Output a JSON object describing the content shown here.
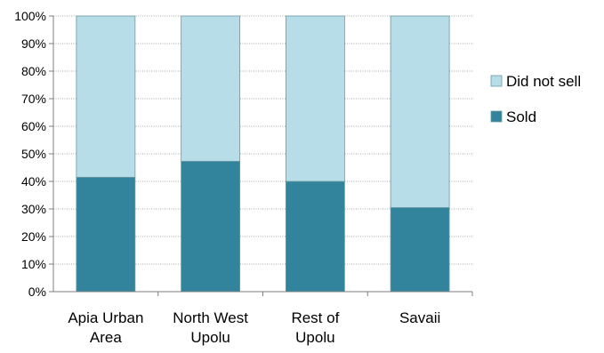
{
  "chart_data": {
    "type": "bar",
    "stacked": true,
    "percent_stacked": true,
    "categories": [
      [
        "Apia Urban",
        "Area"
      ],
      [
        "North West",
        "Upolu"
      ],
      [
        "Rest of",
        "Upolu"
      ],
      [
        "Savaii"
      ]
    ],
    "series": [
      {
        "name": "Sold",
        "values": [
          41.5,
          47.3,
          40.0,
          30.5
        ],
        "color": "#31849b"
      },
      {
        "name": "Did not sell",
        "values": [
          58.5,
          52.7,
          60.0,
          69.5
        ],
        "color": "#b7dee8"
      }
    ],
    "y_ticks": [
      "0%",
      "10%",
      "20%",
      "30%",
      "40%",
      "50%",
      "60%",
      "70%",
      "80%",
      "90%",
      "100%"
    ],
    "ylim": [
      0,
      100
    ],
    "grid": "horizontal-dotted",
    "legend": {
      "position": "right",
      "items": [
        {
          "label": "Did not sell",
          "color": "#b7dee8"
        },
        {
          "label": "Sold",
          "color": "#31849b"
        }
      ]
    },
    "title": "",
    "xlabel": "",
    "ylabel": ""
  }
}
